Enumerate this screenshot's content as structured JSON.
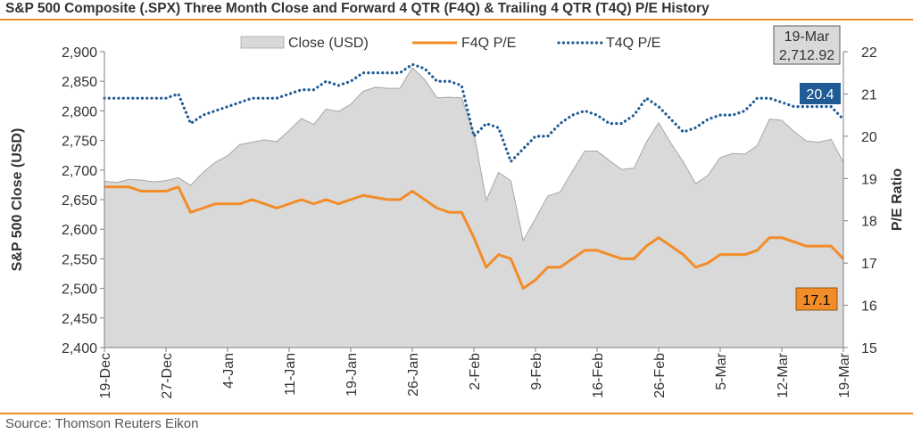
{
  "title": "S&P 500 Composite (.SPX) Three Month Close and Forward 4 QTR (F4Q) & Trailing 4 QTR (T4Q) P/E History",
  "source": "Source: Thomson Reuters Eikon",
  "colors": {
    "accent": "#f28c28",
    "close_fill": "#d9d9d9",
    "close_stroke": "#a6a6a6",
    "f4q": "#f28c28",
    "t4q": "#1f5b94",
    "t4q_badge": "#1f5b94",
    "f4q_badge": "#f28c28",
    "close_badge": "#d9d9d9"
  },
  "chart_data": {
    "type": "area+line",
    "title": "S&P 500 Composite (.SPX) Three Month Close and Forward 4 QTR (F4Q) & Trailing 4 QTR (T4Q) P/E History",
    "ylabel_left": "S&P 500 Close (USD)",
    "ylabel_right": "P/E Ratio",
    "ylim_left": [
      2400,
      2900
    ],
    "ylim_right": [
      15,
      22
    ],
    "yticks_left": [
      "2,400",
      "2,450",
      "2,500",
      "2,550",
      "2,600",
      "2,650",
      "2,700",
      "2,750",
      "2,800",
      "2,850",
      "2,900"
    ],
    "yticks_right": [
      "15",
      "16",
      "17",
      "18",
      "19",
      "20",
      "21",
      "22"
    ],
    "xtick_labels": [
      "19-Dec",
      "27-Dec",
      "4-Jan",
      "11-Jan",
      "19-Jan",
      "26-Jan",
      "2-Feb",
      "9-Feb",
      "16-Feb",
      "26-Feb",
      "5-Mar",
      "12-Mar",
      "19-Mar"
    ],
    "xtick_positions": [
      0,
      5,
      10,
      15,
      20,
      25,
      30,
      35,
      40,
      45,
      50,
      55,
      60
    ],
    "legend": {
      "placement": "top",
      "entries": [
        "Close (USD)",
        "F4Q P/E",
        "T4Q P/E"
      ]
    },
    "series": [
      {
        "name": "Close (USD)",
        "axis": "left",
        "style": "area",
        "values": [
          2681,
          2679,
          2684,
          2683,
          2680,
          2682,
          2687,
          2674,
          2696,
          2713,
          2724,
          2743,
          2747,
          2751,
          2748,
          2767,
          2787,
          2777,
          2803,
          2799,
          2811,
          2833,
          2840,
          2838,
          2838,
          2873,
          2853,
          2822,
          2823,
          2822,
          2763,
          2649,
          2696,
          2682,
          2581,
          2618,
          2656,
          2663,
          2698,
          2732,
          2732,
          2716,
          2701,
          2703,
          2747,
          2780,
          2745,
          2714,
          2677,
          2691,
          2721,
          2728,
          2727,
          2741,
          2786,
          2784,
          2765,
          2749,
          2747,
          2752,
          2713
        ]
      },
      {
        "name": "F4Q P/E",
        "axis": "right",
        "style": "line",
        "values": [
          18.8,
          18.8,
          18.8,
          18.7,
          18.7,
          18.7,
          18.8,
          18.2,
          18.3,
          18.4,
          18.4,
          18.4,
          18.5,
          18.4,
          18.3,
          18.4,
          18.5,
          18.4,
          18.5,
          18.4,
          18.5,
          18.6,
          18.55,
          18.5,
          18.5,
          18.7,
          18.5,
          18.3,
          18.2,
          18.2,
          17.6,
          16.9,
          17.2,
          17.1,
          16.4,
          16.6,
          16.9,
          16.9,
          17.1,
          17.3,
          17.3,
          17.2,
          17.1,
          17.1,
          17.4,
          17.6,
          17.4,
          17.2,
          16.9,
          17.0,
          17.2,
          17.2,
          17.2,
          17.3,
          17.6,
          17.6,
          17.5,
          17.4,
          17.4,
          17.4,
          17.1
        ]
      },
      {
        "name": "T4Q P/E",
        "axis": "right",
        "style": "dotted",
        "values": [
          20.9,
          20.9,
          20.9,
          20.9,
          20.9,
          20.9,
          21.0,
          20.3,
          20.5,
          20.6,
          20.7,
          20.8,
          20.9,
          20.9,
          20.9,
          21.0,
          21.1,
          21.1,
          21.3,
          21.2,
          21.3,
          21.5,
          21.5,
          21.5,
          21.5,
          21.7,
          21.6,
          21.3,
          21.3,
          21.2,
          20.0,
          20.3,
          20.2,
          19.4,
          19.7,
          20.0,
          20.0,
          20.3,
          20.5,
          20.6,
          20.5,
          20.3,
          20.3,
          20.5,
          20.9,
          20.7,
          20.4,
          20.1,
          20.2,
          20.4,
          20.5,
          20.5,
          20.6,
          20.9,
          20.9,
          20.8,
          20.7,
          20.7,
          20.7,
          20.7,
          20.4
        ]
      }
    ],
    "annotations": [
      {
        "label": "19-Mar",
        "value": "2,712.92",
        "series": "Close (USD)"
      },
      {
        "label": "",
        "value": "20.4",
        "series": "T4Q P/E"
      },
      {
        "label": "",
        "value": "17.1",
        "series": "F4Q P/E"
      }
    ]
  }
}
